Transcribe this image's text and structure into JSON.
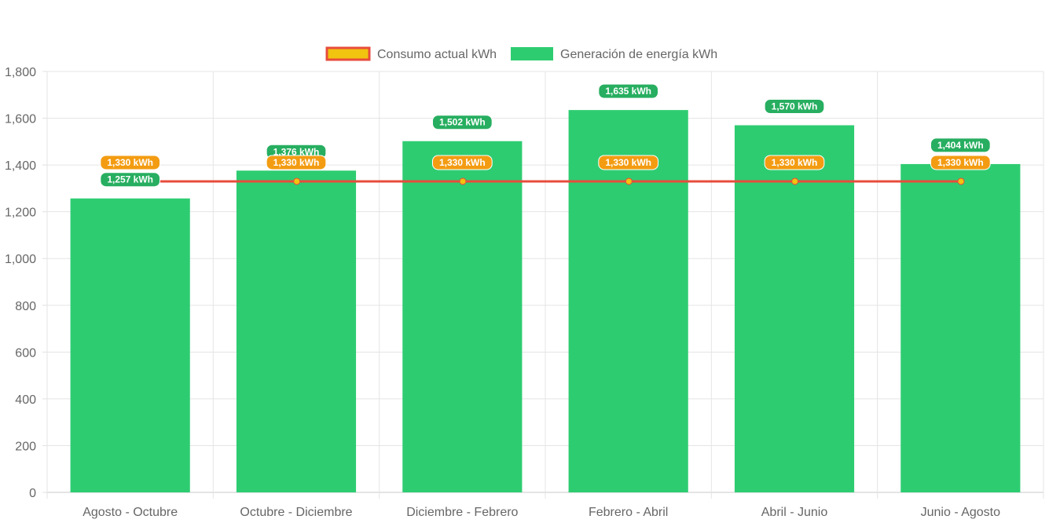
{
  "chart_data": {
    "type": "bar",
    "categories": [
      "Agosto - Octubre",
      "Octubre - Diciembre",
      "Diciembre - Febrero",
      "Febrero - Abril",
      "Abril - Junio",
      "Junio - Agosto"
    ],
    "series": [
      {
        "name": "Consumo actual kWh",
        "type": "line",
        "values": [
          1330,
          1330,
          1330,
          1330,
          1330,
          1330
        ],
        "labels": [
          "1,330 kWh",
          "1,330 kWh",
          "1,330 kWh",
          "1,330 kWh",
          "1,330 kWh",
          "1,330 kWh"
        ],
        "line_color": "#e74c3c",
        "fill_color": "#f1c40f",
        "label_color": "#f39c12"
      },
      {
        "name": "Generación de energía kWh",
        "type": "bar",
        "values": [
          1257,
          1376,
          1502,
          1635,
          1570,
          1404
        ],
        "labels": [
          "1,257 kWh",
          "1,376 kWh",
          "1,502 kWh",
          "1,635 kWh",
          "1,570 kWh",
          "1,404 kWh"
        ],
        "color": "#2ecc71",
        "label_color": "#27ae60"
      }
    ],
    "y_ticks": [
      "0",
      "200",
      "400",
      "600",
      "800",
      "1,000",
      "1,200",
      "1,400",
      "1,600",
      "1,800"
    ],
    "ylim": [
      0,
      1800
    ],
    "grid": true,
    "legend_position": "top",
    "title": "",
    "xlabel": "",
    "ylabel": ""
  }
}
